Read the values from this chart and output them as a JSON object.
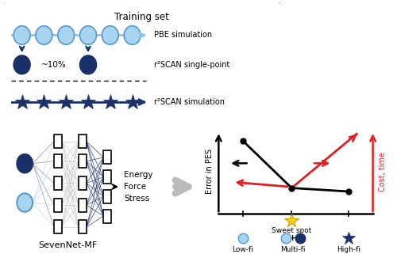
{
  "title": "Training set",
  "pbe_label": "PBE simulation",
  "r2scan_sp_label": "r²SCAN single-point",
  "r2scan_sim_label": "r²SCAN simulation",
  "approx10_label": "~10%",
  "sevennet_label": "SevenNet-MF",
  "energy_force_stress": "Energy\nForce\nStress",
  "error_in_pes": "Error in PES",
  "cost_time": "Cost, time",
  "sweet_spot": "Sweet spot",
  "low_fi": "Low-fi",
  "multi_fi": "Multi-fi",
  "high_fi": "High-fi",
  "light_blue": "#a8d4f0",
  "dark_blue": "#1a3068",
  "light_blue_line": "#8ec6f0",
  "red_color": "#e02020",
  "black_color": "#000000",
  "gray_color": "#999999",
  "light_gray": "#cccccc",
  "bg_white": "#ffffff",
  "yellow_star": "#ffd700",
  "yellow_star_edge": "#cc9900",
  "box_edge": "#111111"
}
